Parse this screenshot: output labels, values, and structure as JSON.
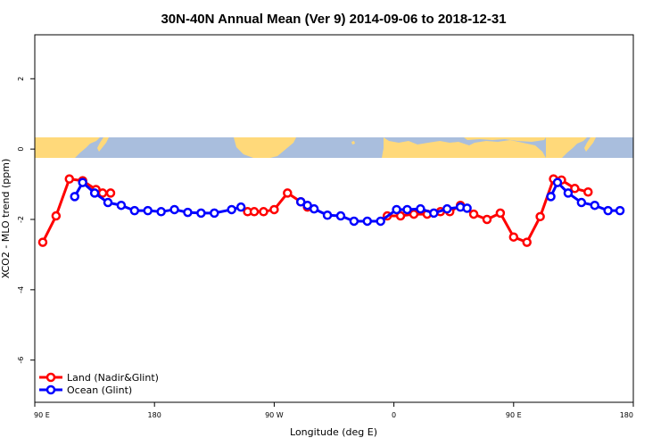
{
  "chart_data": {
    "type": "line",
    "title": "30N-40N Annual Mean (Ver 9)   2014-09-06 to 2018-12-31",
    "xlabel": "Longitude (deg E)",
    "ylabel": "XCO2 - MLO trend (ppm)",
    "xlim": [
      90,
      540
    ],
    "ylim": [
      -7.2,
      3.25
    ],
    "x_ticks": [
      {
        "value": 90,
        "label": "90 E"
      },
      {
        "value": 180,
        "label": "180"
      },
      {
        "value": 270,
        "label": "90 W"
      },
      {
        "value": 360,
        "label": "0"
      },
      {
        "value": 450,
        "label": "90 E"
      },
      {
        "value": 540,
        "label": "180"
      }
    ],
    "y_ticks": [
      {
        "value": 2,
        "label": "2"
      },
      {
        "value": 0,
        "label": "0"
      },
      {
        "value": -2,
        "label": "-2"
      },
      {
        "value": -4,
        "label": "-4"
      },
      {
        "value": -6,
        "label": "-6"
      }
    ],
    "grid": false,
    "legend_position": "bottom-left",
    "background_band": {
      "y_range": [
        -0.1,
        0.45
      ],
      "ocean_color": "#a9bedd",
      "land_color": "#ffd97a"
    },
    "series": [
      {
        "name": "Land (Nadir&Glint)",
        "color": "#ff0000",
        "x": [
          96,
          106,
          116,
          126,
          136,
          141,
          147,
          250,
          255,
          262,
          270,
          280,
          290,
          295,
          355,
          365,
          375,
          385,
          395,
          402,
          410,
          420,
          430,
          440,
          450,
          460,
          470,
          480,
          486,
          496,
          506
        ],
        "y": [
          -2.65,
          -1.9,
          -0.85,
          -0.9,
          -1.15,
          -1.25,
          -1.25,
          -1.78,
          -1.78,
          -1.78,
          -1.72,
          -1.25,
          -1.5,
          -1.65,
          -1.9,
          -1.9,
          -1.85,
          -1.85,
          -1.78,
          -1.78,
          -1.6,
          -1.85,
          -2.0,
          -1.82,
          -2.5,
          -2.65,
          -1.92,
          -0.85,
          -0.88,
          -1.12,
          -1.22
        ]
      },
      {
        "name": "Ocean (Glint)",
        "color": "#0000ff",
        "x": [
          120,
          126,
          135,
          145,
          155,
          165,
          175,
          185,
          195,
          205,
          215,
          225,
          238,
          245,
          290,
          295,
          300,
          310,
          320,
          330,
          340,
          350,
          362,
          370,
          380,
          390,
          400,
          410,
          415,
          478,
          483,
          491,
          501,
          511,
          521,
          530
        ],
        "y": [
          -1.35,
          -0.95,
          -1.25,
          -1.52,
          -1.6,
          -1.75,
          -1.75,
          -1.78,
          -1.72,
          -1.8,
          -1.82,
          -1.82,
          -1.72,
          -1.65,
          -1.5,
          -1.6,
          -1.7,
          -1.88,
          -1.9,
          -2.05,
          -2.05,
          -2.05,
          -1.72,
          -1.72,
          -1.7,
          -1.82,
          -1.7,
          -1.65,
          -1.68,
          -1.35,
          -0.95,
          -1.25,
          -1.52,
          -1.6,
          -1.75,
          -1.75
        ]
      }
    ]
  }
}
